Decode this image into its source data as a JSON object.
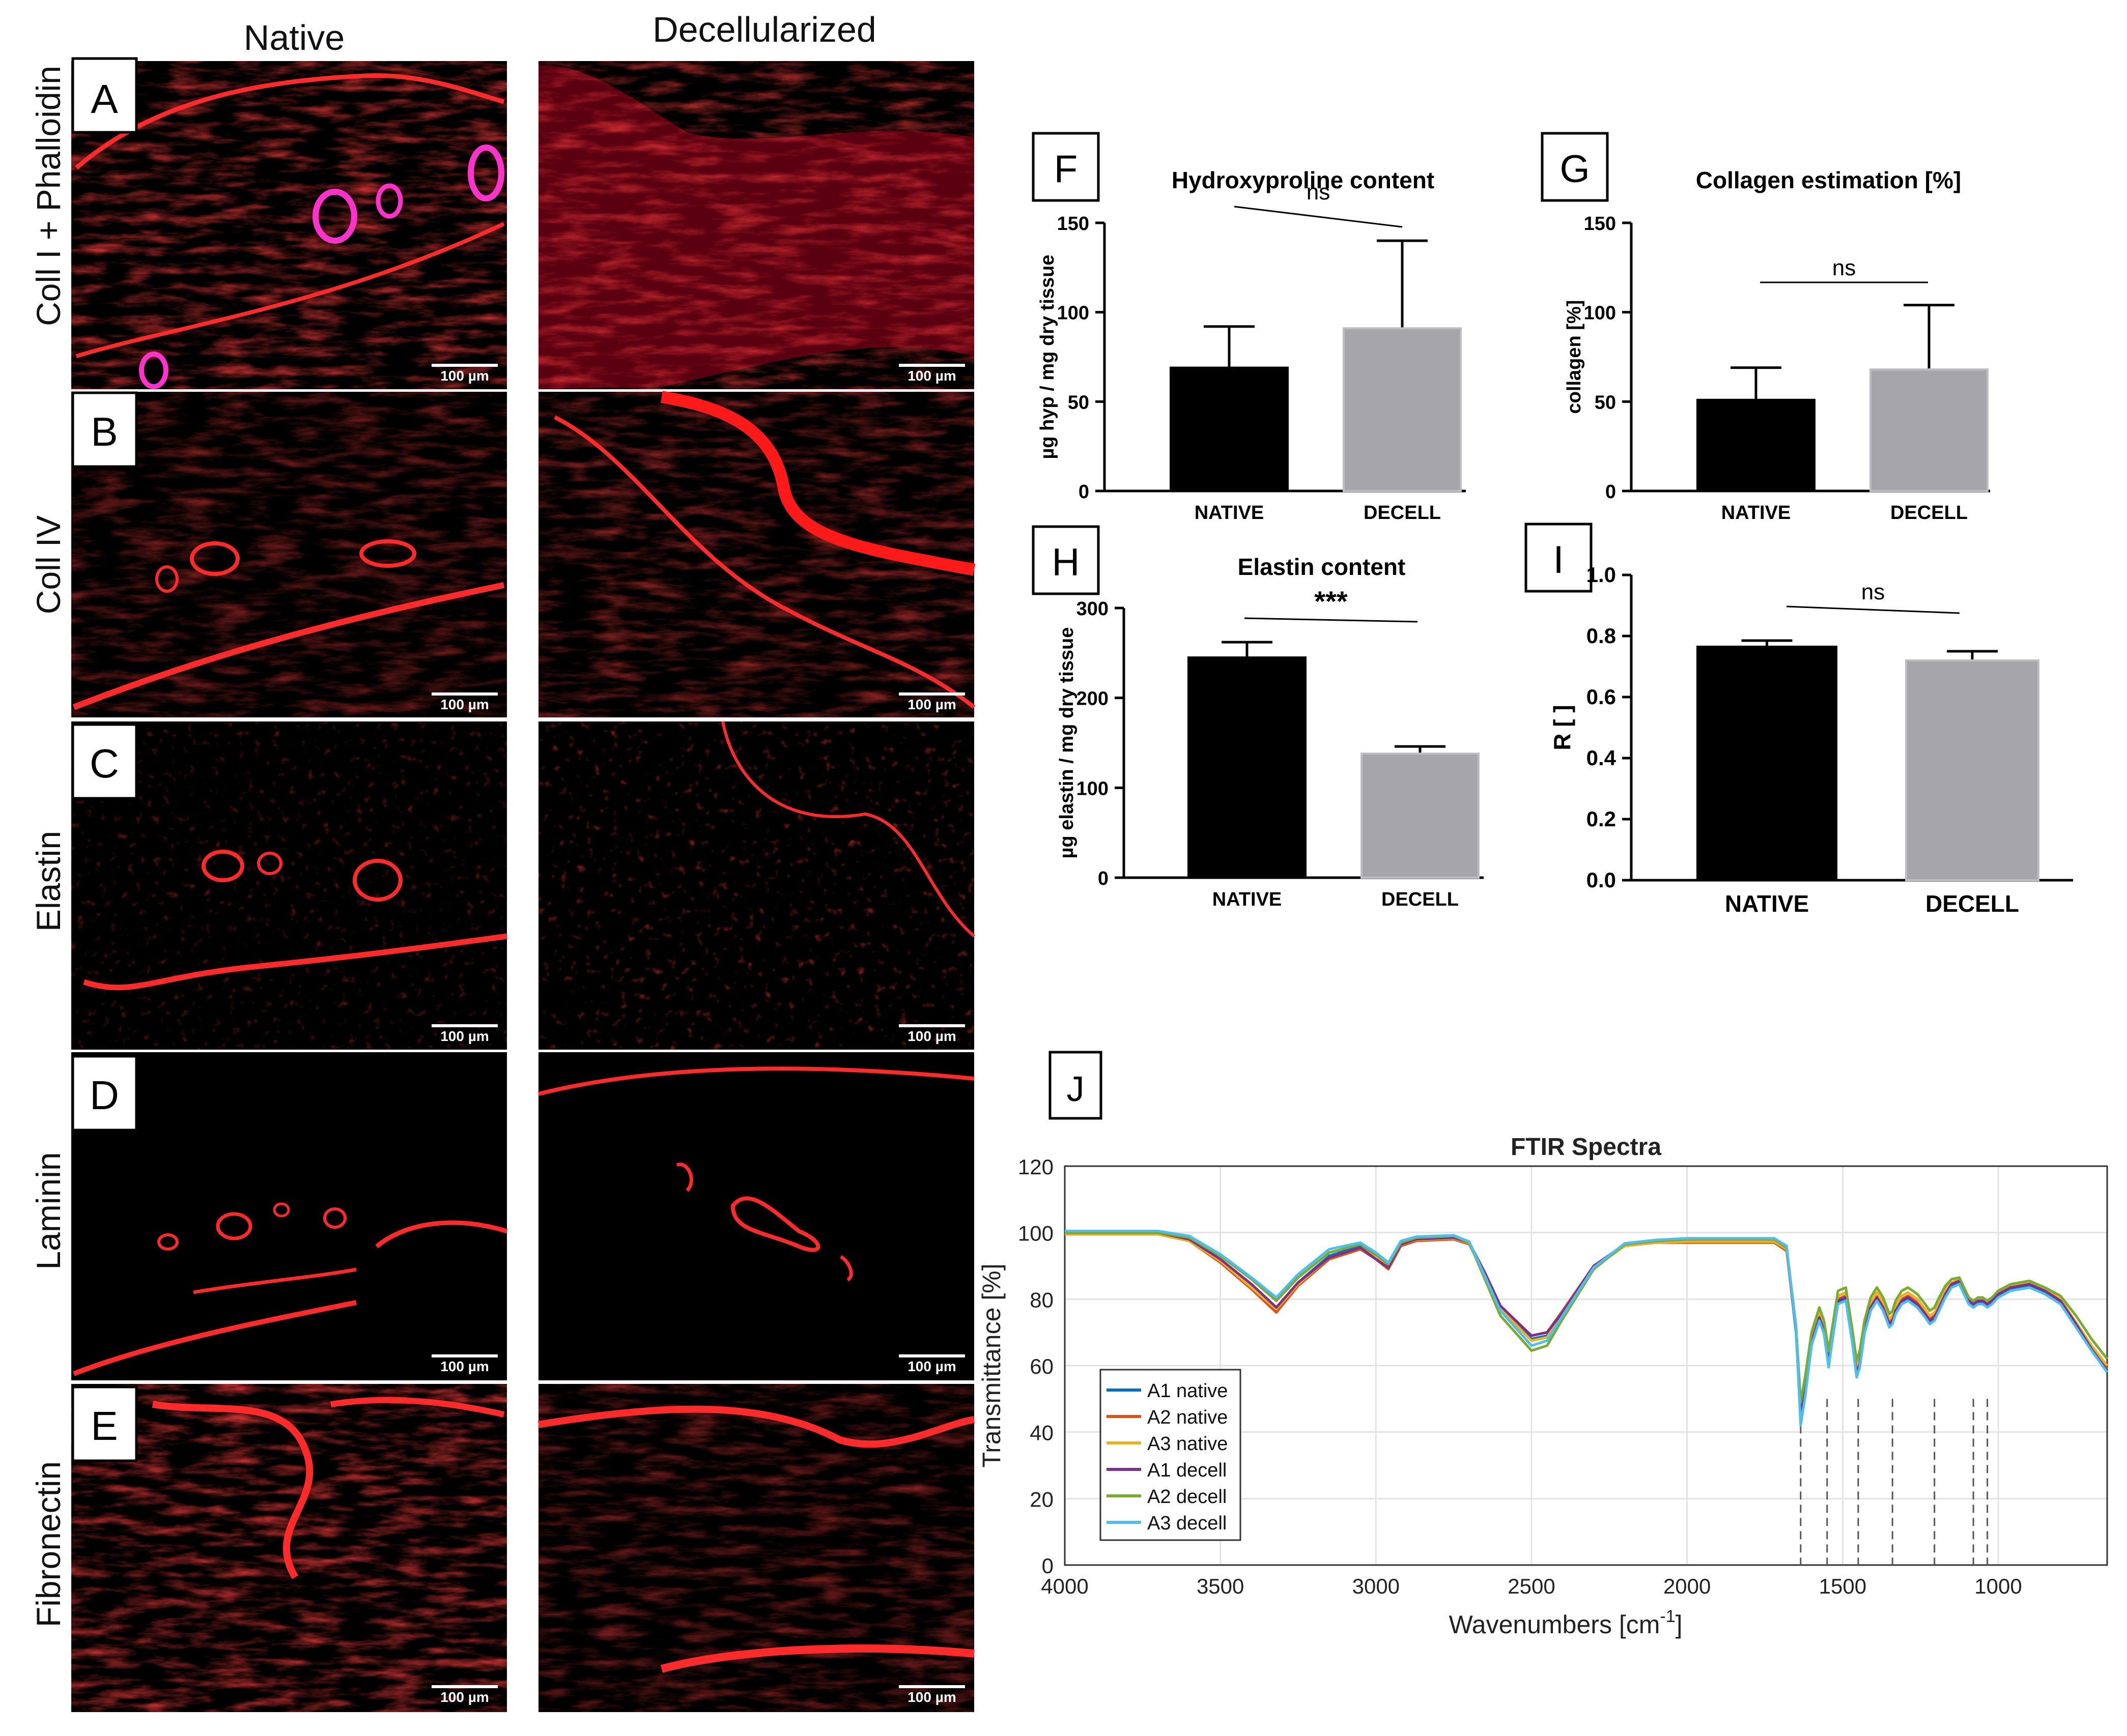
{
  "micro": {
    "col_headers": [
      "Native",
      "Decellularized"
    ],
    "rows": [
      {
        "letter": "A",
        "label": "Coll I + Phalloidin"
      },
      {
        "letter": "B",
        "label": "Coll IV"
      },
      {
        "letter": "C",
        "label": "Elastin"
      },
      {
        "letter": "D",
        "label": "Laminin"
      },
      {
        "letter": "E",
        "label": "Fibronectin"
      }
    ],
    "scale_bar": "100 µm",
    "colors": {
      "stain": "#ff1a1a",
      "phalloidin": "#ff33cc",
      "background": "#000000"
    }
  },
  "chart_data": [
    {
      "panel": "F",
      "type": "bar",
      "title": "Hydroxyproline content",
      "categories": [
        "NATIVE",
        "DECELL"
      ],
      "values": [
        69,
        91
      ],
      "errors": [
        23,
        49
      ],
      "colors": [
        "#000000",
        "#a5a5aa"
      ],
      "ylabel": "µg hyp / mg dry tissue",
      "ylim": [
        0,
        150
      ],
      "yticks": [
        "0",
        "50",
        "100",
        "150"
      ],
      "significance": "ns"
    },
    {
      "panel": "G",
      "type": "bar",
      "title": "Collagen estimation [%]",
      "categories": [
        "NATIVE",
        "DECELL"
      ],
      "values": [
        51,
        68
      ],
      "errors": [
        18,
        36
      ],
      "colors": [
        "#000000",
        "#a5a5aa"
      ],
      "ylabel": "collagen [%]",
      "ylim": [
        0,
        150
      ],
      "yticks": [
        "0",
        "50",
        "100",
        "150"
      ],
      "significance": "ns"
    },
    {
      "panel": "H",
      "type": "bar",
      "title": "Elastin content",
      "categories": [
        "NATIVE",
        "DECELL"
      ],
      "values": [
        245,
        138
      ],
      "errors": [
        17,
        8
      ],
      "colors": [
        "#000000",
        "#a5a5aa"
      ],
      "ylabel": "µg elastin / mg dry tissue",
      "ylim": [
        0,
        300
      ],
      "yticks": [
        "0",
        "100",
        "200",
        "300"
      ],
      "significance": "***"
    },
    {
      "panel": "I",
      "type": "bar",
      "title": "",
      "categories": [
        "NATIVE",
        "DECELL"
      ],
      "values": [
        0.765,
        0.72
      ],
      "errors": [
        0.02,
        0.03
      ],
      "colors": [
        "#000000",
        "#a5a5aa"
      ],
      "ylabel": "R [ ]",
      "ylim": [
        0,
        1.0
      ],
      "yticks": [
        "0.0",
        "0.2",
        "0.4",
        "0.6",
        "0.8",
        "1.0"
      ],
      "significance": "ns"
    },
    {
      "panel": "J",
      "type": "line",
      "title": "FTIR Spectra",
      "xlabel": "Wavenumbers [cm",
      "xlabel_sup": "-1",
      "xlabel_end": "]",
      "ylabel": "Transmittance [%]",
      "xlim": [
        4000,
        650
      ],
      "ylim": [
        0,
        120
      ],
      "grid": true,
      "legend_position": "bottom-left",
      "xticks": [
        "4000",
        "3500",
        "3000",
        "2500",
        "2000",
        "1500",
        "1000"
      ],
      "yticks": [
        "0",
        "20",
        "40",
        "60",
        "80",
        "100",
        "120"
      ],
      "marker_lines": [
        1635,
        1550,
        1450,
        1340,
        1205,
        1080,
        1035
      ],
      "x": [
        4000,
        3700,
        3600,
        3500,
        3400,
        3320,
        3250,
        3150,
        3050,
        3000,
        2960,
        2920,
        2870,
        2750,
        2700,
        2650,
        2600,
        2500,
        2450,
        2400,
        2300,
        2200,
        2100,
        2000,
        1900,
        1800,
        1720,
        1680,
        1650,
        1635,
        1620,
        1600,
        1575,
        1560,
        1545,
        1530,
        1515,
        1490,
        1470,
        1455,
        1445,
        1430,
        1410,
        1390,
        1370,
        1350,
        1340,
        1330,
        1310,
        1290,
        1260,
        1235,
        1220,
        1205,
        1190,
        1170,
        1150,
        1125,
        1110,
        1095,
        1080,
        1065,
        1050,
        1035,
        1020,
        1000,
        960,
        900,
        850,
        800,
        750,
        700,
        650
      ],
      "series": [
        {
          "name": "A1 native",
          "color": "#0072bd",
          "values": [
            100,
            100,
            98,
            92,
            84,
            77,
            85,
            93,
            96,
            93,
            90,
            97,
            98,
            98.5,
            97,
            88,
            78,
            68,
            69,
            76,
            90,
            96,
            97,
            97.5,
            97.5,
            97.5,
            97.5,
            95,
            70,
            44,
            52,
            66,
            74,
            70,
            60,
            70,
            79,
            80,
            68,
            57,
            60,
            70,
            77,
            80,
            77,
            72,
            73,
            76,
            79,
            80,
            78,
            75,
            73,
            74,
            77,
            81,
            84,
            85,
            82,
            79,
            78,
            79,
            79,
            78,
            79,
            81,
            83,
            84,
            82,
            79,
            72,
            65,
            58
          ]
        },
        {
          "name": "A2 native",
          "color": "#d95319",
          "values": [
            99.5,
            99.5,
            97.5,
            91,
            83,
            76,
            84,
            92,
            95,
            92,
            89,
            96,
            97.5,
            98,
            96.5,
            87.5,
            77.5,
            69,
            70,
            76.5,
            90,
            96,
            97,
            97,
            97,
            97,
            97,
            94.5,
            71,
            46,
            53.5,
            67,
            75,
            71,
            61.5,
            71,
            80,
            81,
            69,
            58.5,
            61.5,
            71,
            78,
            81,
            78,
            73,
            74,
            77,
            80,
            81,
            79,
            76,
            74,
            75,
            78,
            82,
            84.5,
            85.5,
            82.5,
            79.5,
            78.5,
            79.5,
            79.5,
            78.5,
            79.5,
            81.5,
            83.5,
            84.5,
            82.5,
            79.5,
            72.5,
            65.5,
            59
          ]
        },
        {
          "name": "A3 native",
          "color": "#edb120",
          "values": [
            99.5,
            99.5,
            97.5,
            91.5,
            83.5,
            77,
            84.5,
            92.5,
            95.5,
            92.5,
            89.5,
            96.5,
            97.8,
            98.3,
            96.8,
            87,
            77,
            67.5,
            68.5,
            75.5,
            89.5,
            96,
            97,
            97.3,
            97.3,
            97.3,
            97.3,
            95,
            71.5,
            48,
            55,
            68,
            76,
            72,
            63,
            72,
            81,
            82,
            70,
            60,
            63,
            72,
            79,
            82,
            79,
            74,
            75,
            78,
            81,
            82,
            80,
            77,
            75,
            76,
            79,
            83,
            85,
            86,
            83,
            80,
            79,
            80,
            80,
            79,
            80,
            82,
            84,
            85,
            83,
            80,
            73,
            66,
            60
          ]
        },
        {
          "name": "A1 decell",
          "color": "#7e2f8e",
          "values": [
            100,
            100,
            98,
            92,
            84.5,
            77.5,
            85,
            92.5,
            95.5,
            92,
            89.5,
            96.5,
            98,
            98.5,
            97,
            88,
            78,
            69,
            70,
            76,
            90,
            96.5,
            97.5,
            98,
            98,
            98,
            98,
            95.5,
            70.5,
            45,
            53,
            67,
            74.5,
            70.5,
            61,
            70.5,
            79.5,
            80.5,
            68.5,
            57.5,
            60.5,
            70.5,
            77.5,
            80.5,
            77.5,
            72.5,
            73.5,
            76.5,
            79.5,
            80.5,
            78.5,
            75.5,
            73.5,
            74.5,
            77.5,
            81.5,
            84.5,
            85.5,
            82.5,
            79.5,
            78.5,
            79.5,
            79.5,
            78.5,
            79.5,
            81.5,
            83.5,
            84.5,
            82.5,
            79.5,
            72.5,
            65,
            58.5
          ]
        },
        {
          "name": "A2 decell",
          "color": "#77ac30",
          "values": [
            100,
            100,
            98.5,
            93,
            86,
            79.5,
            86.5,
            94,
            96.5,
            93.5,
            90.5,
            97,
            98.5,
            99,
            97,
            86,
            75,
            64.5,
            66,
            74,
            89,
            96.5,
            97.5,
            98,
            98,
            98,
            98,
            95.5,
            72,
            49,
            57,
            70,
            77.5,
            73.5,
            64.5,
            73.5,
            82.5,
            83.5,
            71.5,
            61.5,
            64.5,
            73.5,
            80.5,
            83.5,
            80.5,
            75.5,
            76.5,
            79.5,
            82.5,
            83.5,
            81.5,
            78.5,
            76.5,
            77.5,
            80.5,
            84,
            86,
            86.5,
            83.5,
            80.5,
            79.5,
            80.5,
            80.5,
            79.5,
            80.5,
            82.5,
            84.5,
            85.5,
            83.5,
            81,
            75,
            68,
            62
          ]
        },
        {
          "name": "A3 decell",
          "color": "#4dbeee",
          "values": [
            100.5,
            100.5,
            99,
            93.5,
            86.5,
            80.5,
            87.5,
            95,
            97,
            94,
            91,
            97.5,
            98.8,
            99.2,
            97.3,
            87,
            76.5,
            66,
            67.5,
            75,
            89.5,
            96.8,
            97.8,
            98.3,
            98.3,
            98.3,
            98.3,
            96,
            71,
            42,
            51,
            66,
            73.5,
            69.5,
            59.5,
            69.5,
            78.5,
            79.5,
            67.5,
            56.5,
            59.5,
            69.5,
            76.5,
            79.5,
            76.5,
            71.5,
            72.5,
            75.5,
            78.5,
            79.5,
            77.5,
            74.5,
            72.5,
            73.5,
            76.5,
            80.5,
            83.5,
            84.5,
            81.5,
            78.5,
            77.5,
            78.5,
            78.5,
            77.5,
            78.5,
            80.5,
            82.5,
            83.5,
            81.5,
            78.5,
            71.5,
            64.5,
            58
          ]
        }
      ]
    }
  ]
}
